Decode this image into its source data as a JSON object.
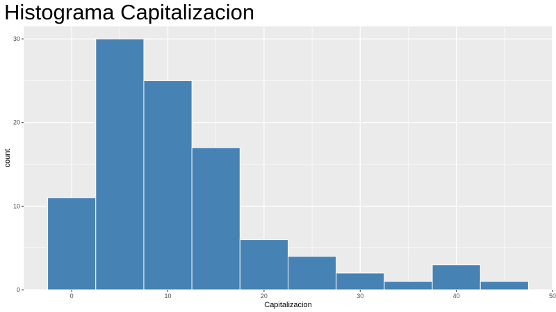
{
  "chart_data": {
    "type": "bar",
    "title": "Histograma Capitalizacion",
    "xlabel": "Capitalizacion",
    "ylabel": "count",
    "bins": [
      {
        "x0": -2.5,
        "x1": 2.5,
        "count": 11
      },
      {
        "x0": 2.5,
        "x1": 7.5,
        "count": 30
      },
      {
        "x0": 7.5,
        "x1": 12.5,
        "count": 25
      },
      {
        "x0": 12.5,
        "x1": 17.5,
        "count": 17
      },
      {
        "x0": 17.5,
        "x1": 22.5,
        "count": 6
      },
      {
        "x0": 22.5,
        "x1": 27.5,
        "count": 4
      },
      {
        "x0": 27.5,
        "x1": 32.5,
        "count": 2
      },
      {
        "x0": 32.5,
        "x1": 37.5,
        "count": 1
      },
      {
        "x0": 37.5,
        "x1": 42.5,
        "count": 3
      },
      {
        "x0": 42.5,
        "x1": 47.5,
        "count": 1
      }
    ],
    "xlim": [
      -5,
      50
    ],
    "ylim": [
      0,
      31.5
    ],
    "x_ticks": [
      0,
      10,
      20,
      30,
      40,
      50
    ],
    "y_ticks": [
      0,
      10,
      20,
      30
    ],
    "grid": true,
    "colors": {
      "bar_fill": "#4682B4",
      "bar_outline": "#ffffff",
      "panel_background": "#EBEBEB",
      "grid_line": "#ffffff"
    }
  }
}
